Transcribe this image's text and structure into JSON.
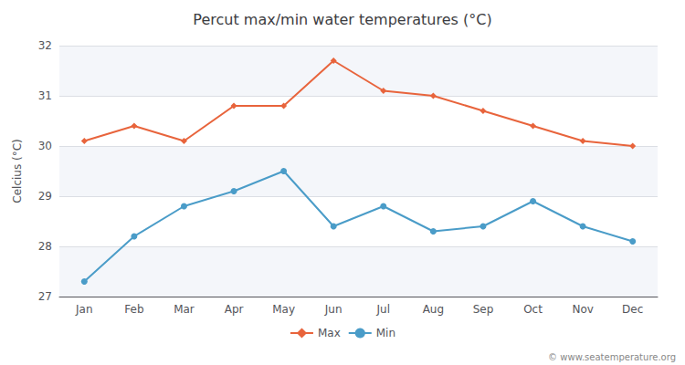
{
  "chart_data": {
    "type": "line",
    "title": "Percut max/min water temperatures (°C)",
    "ylabel": "Celcius (°C)",
    "categories": [
      "Jan",
      "Feb",
      "Mar",
      "Apr",
      "May",
      "Jun",
      "Jul",
      "Aug",
      "Sep",
      "Oct",
      "Nov",
      "Dec"
    ],
    "series": [
      {
        "name": "Max",
        "color": "#e8643c",
        "marker": "diamond",
        "values": [
          30.1,
          30.4,
          30.1,
          30.8,
          30.8,
          31.7,
          31.1,
          31.0,
          30.7,
          30.4,
          30.1,
          30.0
        ]
      },
      {
        "name": "Min",
        "color": "#4a9cc8",
        "marker": "circle",
        "values": [
          27.3,
          28.2,
          28.8,
          29.1,
          29.5,
          28.4,
          28.8,
          28.3,
          28.4,
          28.9,
          28.4,
          28.1
        ]
      }
    ],
    "ylim": [
      27.0,
      32.0
    ],
    "yticks": [
      27,
      28,
      29,
      30,
      31,
      32
    ],
    "grid": true,
    "legend": "bottom",
    "annotations": [
      "© www.seatemperature.org"
    ]
  }
}
